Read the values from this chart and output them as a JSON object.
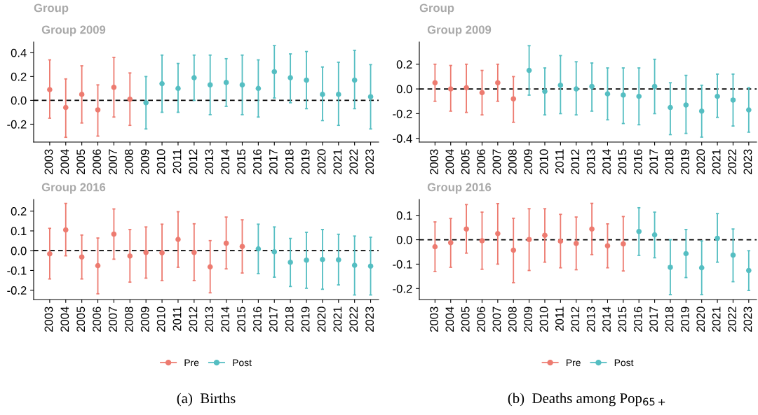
{
  "chart_data": [
    {
      "type": "scatter",
      "title": "Group",
      "subtitle": "Group 2009",
      "categories": [
        "2003",
        "2004",
        "2005",
        "2006",
        "2007",
        "2008",
        "2009",
        "2010",
        "2011",
        "2012",
        "2013",
        "2014",
        "2015",
        "2016",
        "2017",
        "2018",
        "2019",
        "2020",
        "2021",
        "2022",
        "2023"
      ],
      "series": [
        {
          "name": "Pre",
          "color": "#ed7b70",
          "values": [
            0.09,
            -0.06,
            0.05,
            -0.08,
            0.11,
            0.01,
            null,
            null,
            null,
            null,
            null,
            null,
            null,
            null,
            null,
            null,
            null,
            null,
            null,
            null,
            null
          ],
          "errors": [
            [
              -0.15,
              0.34
            ],
            [
              -0.31,
              0.18
            ],
            [
              -0.19,
              0.29
            ],
            [
              -0.3,
              0.13
            ],
            [
              -0.14,
              0.36
            ],
            [
              -0.21,
              0.23
            ],
            null,
            null,
            null,
            null,
            null,
            null,
            null,
            null,
            null,
            null,
            null,
            null,
            null,
            null,
            null
          ]
        },
        {
          "name": "Post",
          "color": "#55bec2",
          "values": [
            null,
            null,
            null,
            null,
            null,
            null,
            -0.02,
            0.14,
            0.1,
            0.19,
            0.13,
            0.15,
            0.13,
            0.1,
            0.24,
            0.19,
            0.17,
            0.05,
            0.05,
            0.17,
            0.03
          ],
          "errors": [
            null,
            null,
            null,
            null,
            null,
            null,
            [
              -0.24,
              0.2
            ],
            [
              -0.1,
              0.38
            ],
            [
              -0.1,
              0.31
            ],
            [
              0.0,
              0.38
            ],
            [
              -0.12,
              0.38
            ],
            [
              -0.05,
              0.35
            ],
            [
              -0.12,
              0.38
            ],
            [
              -0.14,
              0.34
            ],
            [
              0.02,
              0.46
            ],
            [
              -0.02,
              0.39
            ],
            [
              -0.07,
              0.41
            ],
            [
              -0.17,
              0.28
            ],
            [
              -0.21,
              0.32
            ],
            [
              -0.07,
              0.42
            ],
            [
              -0.24,
              0.3
            ]
          ]
        }
      ],
      "ylim": [
        -0.35,
        0.49
      ],
      "yticks": [
        {
          "value": -0.2,
          "label": "-0.2"
        },
        {
          "value": 0,
          "label": "0.0"
        },
        0.2,
        0.4
      ],
      "ref_lines": [
        {
          "axis": "y",
          "value": 0,
          "color": "#000000",
          "line_style": "dashed"
        }
      ],
      "marker": "circle",
      "grid": false,
      "legend": "bottom"
    },
    {
      "type": "scatter",
      "title": "Group",
      "subtitle": "Group 2009",
      "categories": [
        "2003",
        "2004",
        "2005",
        "2006",
        "2007",
        "2008",
        "2009",
        "2010",
        "2011",
        "2012",
        "2013",
        "2014",
        "2015",
        "2016",
        "2017",
        "2018",
        "2019",
        "2020",
        "2021",
        "2022",
        "2023"
      ],
      "series": [
        {
          "name": "Pre",
          "color": "#ed7b70",
          "values": [
            0.05,
            0.0,
            0.01,
            -0.03,
            0.05,
            -0.08,
            null,
            null,
            null,
            null,
            null,
            null,
            null,
            null,
            null,
            null,
            null,
            null,
            null,
            null,
            null
          ],
          "errors": [
            [
              -0.1,
              0.2
            ],
            [
              -0.18,
              0.19
            ],
            [
              -0.19,
              0.2
            ],
            [
              -0.21,
              0.15
            ],
            [
              -0.1,
              0.2
            ],
            [
              -0.27,
              0.1
            ],
            null,
            null,
            null,
            null,
            null,
            null,
            null,
            null,
            null,
            null,
            null,
            null,
            null,
            null,
            null
          ]
        },
        {
          "name": "Post",
          "color": "#55bec2",
          "values": [
            null,
            null,
            null,
            null,
            null,
            null,
            0.15,
            -0.02,
            0.03,
            0.0,
            0.02,
            -0.04,
            -0.05,
            -0.06,
            0.02,
            -0.15,
            -0.13,
            -0.18,
            -0.06,
            -0.09,
            -0.17
          ],
          "errors": [
            null,
            null,
            null,
            null,
            null,
            null,
            [
              -0.05,
              0.35
            ],
            [
              -0.21,
              0.17
            ],
            [
              -0.2,
              0.27
            ],
            [
              -0.21,
              0.22
            ],
            [
              -0.18,
              0.21
            ],
            [
              -0.25,
              0.17
            ],
            [
              -0.28,
              0.17
            ],
            [
              -0.29,
              0.17
            ],
            [
              -0.2,
              0.24
            ],
            [
              -0.37,
              0.05
            ],
            [
              -0.36,
              0.11
            ],
            [
              -0.39,
              0.03
            ],
            [
              -0.23,
              0.12
            ],
            [
              -0.3,
              0.12
            ],
            [
              -0.35,
              0.01
            ]
          ]
        }
      ],
      "ylim": [
        -0.43,
        0.38
      ],
      "yticks": [
        {
          "value": -0.4,
          "label": "-0.4"
        },
        {
          "value": -0.2,
          "label": "-0.2"
        },
        {
          "value": 0,
          "label": "0.0"
        },
        0.2
      ],
      "ref_lines": [
        {
          "axis": "y",
          "value": 0,
          "color": "#000000",
          "line_style": "dashed"
        }
      ],
      "marker": "circle",
      "grid": false,
      "legend": "bottom"
    },
    {
      "type": "scatter",
      "title": "Group 2016",
      "categories": [
        "2003",
        "2004",
        "2005",
        "2006",
        "2007",
        "2008",
        "2009",
        "2010",
        "2011",
        "2012",
        "2013",
        "2014",
        "2015",
        "2016",
        "2017",
        "2018",
        "2019",
        "2020",
        "2021",
        "2022",
        "2023"
      ],
      "series": [
        {
          "color": "#ed7b70",
          "values": [
            -0.016,
            0.105,
            -0.032,
            -0.076,
            0.084,
            -0.027,
            -0.009,
            -0.011,
            0.057,
            -0.009,
            -0.082,
            0.038,
            0.021,
            null,
            null,
            null,
            null,
            null,
            null,
            null,
            null
          ],
          "errors": [
            [
              -0.143,
              0.113
            ],
            [
              -0.026,
              0.239
            ],
            [
              -0.143,
              0.079
            ],
            [
              -0.218,
              0.064
            ],
            [
              -0.043,
              0.211
            ],
            [
              -0.159,
              0.107
            ],
            [
              -0.139,
              0.12
            ],
            [
              -0.151,
              0.134
            ],
            [
              -0.084,
              0.197
            ],
            [
              -0.151,
              0.136
            ],
            [
              -0.213,
              0.051
            ],
            [
              -0.092,
              0.17
            ],
            [
              -0.113,
              0.156
            ],
            null,
            null,
            null,
            null,
            null,
            null,
            null,
            null
          ]
        },
        {
          "color": "#55bec2",
          "values": [
            null,
            null,
            null,
            null,
            null,
            null,
            null,
            null,
            null,
            null,
            null,
            null,
            null,
            0.009,
            -0.006,
            -0.059,
            -0.048,
            -0.045,
            -0.046,
            -0.074,
            -0.078
          ],
          "errors": [
            null,
            null,
            null,
            null,
            null,
            null,
            null,
            null,
            null,
            null,
            null,
            null,
            null,
            [
              -0.116,
              0.134
            ],
            [
              -0.134,
              0.12
            ],
            [
              -0.181,
              0.062
            ],
            [
              -0.19,
              0.093
            ],
            [
              -0.195,
              0.107
            ],
            [
              -0.173,
              0.083
            ],
            [
              -0.224,
              0.074
            ],
            [
              -0.224,
              0.068
            ]
          ]
        }
      ],
      "ylim": [
        -0.247,
        0.259
      ],
      "yticks": [
        {
          "value": -0.2,
          "label": "-0.2"
        },
        {
          "value": -0.1,
          "label": "-0.1"
        },
        {
          "value": 0,
          "label": "0.0"
        },
        0.1,
        0.2
      ],
      "ref_lines": [
        {
          "axis": "y",
          "value": 0,
          "color": "#000000",
          "line_style": "dashed"
        }
      ],
      "annotations": [
        "(a)  Births"
      ],
      "marker": "circle",
      "grid": false
    },
    {
      "type": "scatter",
      "title": "Group 2016",
      "categories": [
        "2003",
        "2004",
        "2005",
        "2006",
        "2007",
        "2008",
        "2009",
        "2010",
        "2011",
        "2012",
        "2013",
        "2014",
        "2015",
        "2016",
        "2017",
        "2018",
        "2019",
        "2020",
        "2021",
        "2022",
        "2023"
      ],
      "series": [
        {
          "color": "#ed7b70",
          "values": [
            -0.029,
            -0.012,
            0.044,
            -0.004,
            0.025,
            -0.043,
            0.001,
            0.018,
            -0.006,
            -0.015,
            0.044,
            -0.025,
            -0.017,
            null,
            null,
            null,
            null,
            null,
            null,
            null,
            null
          ],
          "errors": [
            [
              -0.13,
              0.073
            ],
            [
              -0.113,
              0.087
            ],
            [
              -0.055,
              0.144
            ],
            [
              -0.121,
              0.113
            ],
            [
              -0.1,
              0.148
            ],
            [
              -0.176,
              0.088
            ],
            [
              -0.126,
              0.127
            ],
            [
              -0.092,
              0.127
            ],
            [
              -0.115,
              0.104
            ],
            [
              -0.123,
              0.093
            ],
            [
              -0.061,
              0.149
            ],
            [
              -0.115,
              0.065
            ],
            [
              -0.128,
              0.095
            ],
            null,
            null,
            null,
            null,
            null,
            null,
            null,
            null
          ]
        },
        {
          "color": "#55bec2",
          "values": [
            null,
            null,
            null,
            null,
            null,
            null,
            null,
            null,
            null,
            null,
            null,
            null,
            null,
            0.034,
            0.02,
            -0.113,
            -0.057,
            -0.115,
            0.006,
            -0.063,
            -0.126
          ],
          "errors": [
            null,
            null,
            null,
            null,
            null,
            null,
            null,
            null,
            null,
            null,
            null,
            null,
            null,
            [
              -0.064,
              0.131
            ],
            [
              -0.074,
              0.113
            ],
            [
              -0.225,
              0.0
            ],
            [
              -0.155,
              0.042
            ],
            [
              -0.225,
              -0.005
            ],
            [
              -0.092,
              0.107
            ],
            [
              -0.172,
              0.044
            ],
            [
              -0.208,
              -0.045
            ]
          ]
        }
      ],
      "ylim": [
        -0.245,
        0.165
      ],
      "yticks": [
        {
          "value": -0.2,
          "label": "-0.2"
        },
        {
          "value": -0.1,
          "label": "-0.1"
        },
        {
          "value": 0,
          "label": "0.0"
        },
        0.1
      ],
      "ref_lines": [
        {
          "axis": "y",
          "value": 0,
          "color": "#000000",
          "line_style": "dashed"
        }
      ],
      "annotations": [
        "(b)  Deaths among Pop$_{65+}$"
      ],
      "marker": "circle",
      "grid": false
    }
  ]
}
